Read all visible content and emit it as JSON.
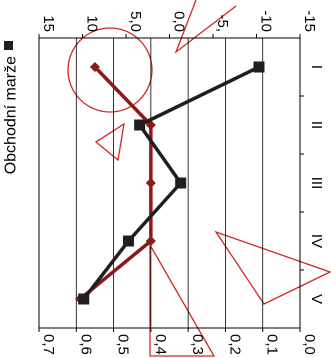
{
  "chart_data": {
    "type": "line",
    "orientation": "rotated-90-cw",
    "categories": [
      "I",
      "II",
      "III",
      "IV",
      "V"
    ],
    "left_axis": {
      "ticks": [
        "0,7",
        "0,6",
        "0,5",
        "0,4",
        "0,3",
        "0,2",
        "0,1",
        "0,0"
      ],
      "min": 0.0,
      "max": 0.7
    },
    "right_axis": {
      "ticks": [
        "15",
        "10",
        "5,0",
        "0,0",
        "-5,",
        "-10",
        "-15"
      ],
      "min": -15,
      "max": 15
    },
    "grid": true,
    "legend": {
      "placement": "top",
      "label": "Obchodní marže"
    },
    "series": [
      {
        "name": "Obchodní marže",
        "marker": "square",
        "color": "#1f1f1f",
        "values": [
          0.11,
          0.43,
          0.32,
          0.46,
          0.58
        ]
      },
      {
        "marker": "diamond",
        "color": "#8b1a1a",
        "values": [
          0.55,
          0.4,
          0.4,
          0.4,
          0.59
        ]
      }
    ]
  },
  "colors": {
    "watermark": "#cc0000",
    "grid": "#000000"
  }
}
